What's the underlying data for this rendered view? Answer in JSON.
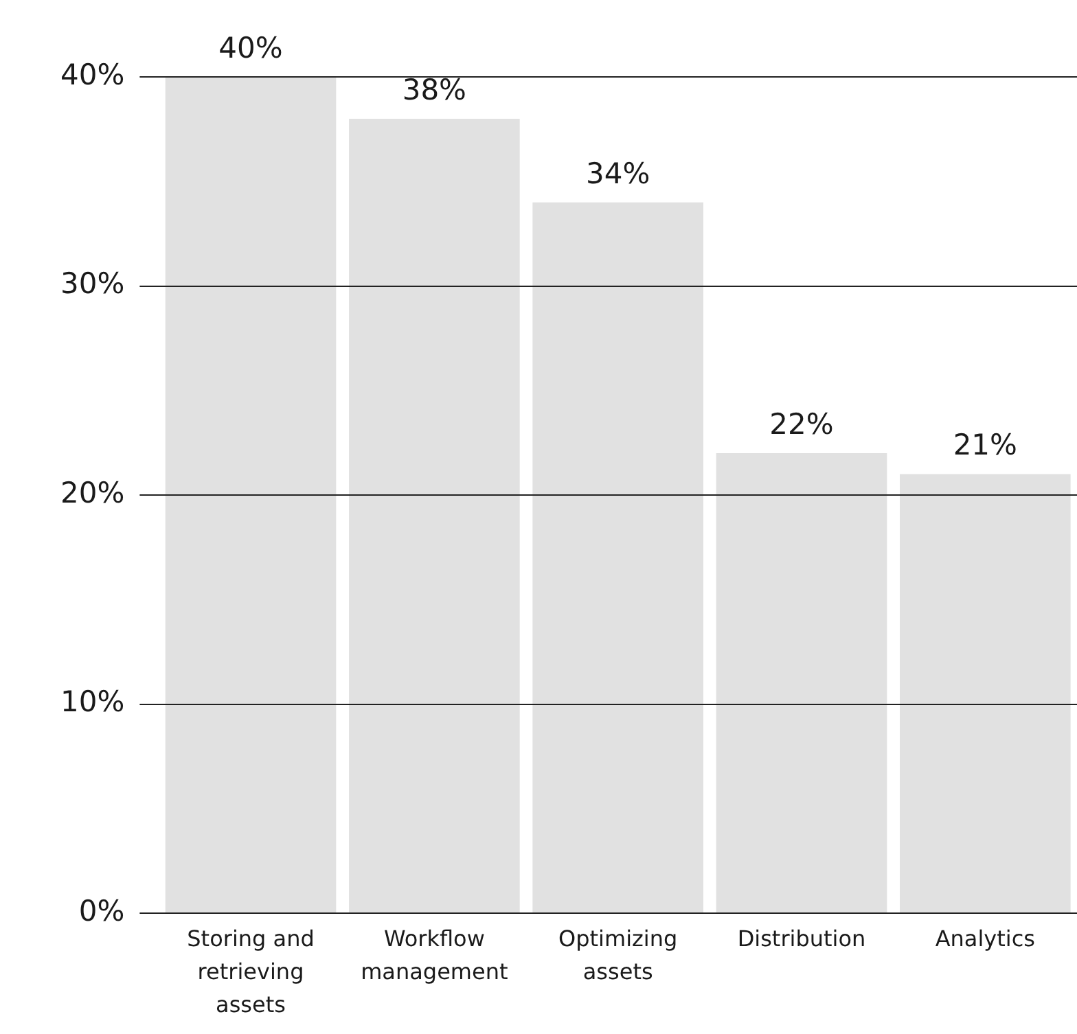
{
  "chart_data": {
    "type": "bar",
    "categories": [
      "Storing and retrieving assets",
      "Workflow management",
      "Optimizing assets",
      "Distribution",
      "Analytics"
    ],
    "values": [
      40,
      38,
      34,
      22,
      21
    ],
    "value_labels": [
      "40%",
      "38%",
      "34%",
      "22%",
      "21%"
    ],
    "color": "#e1e1e1",
    "ylim": [
      0,
      40
    ],
    "yticks": [
      {
        "value": 0,
        "label": "0%"
      },
      {
        "value": 10,
        "label": "10%"
      },
      {
        "value": 20,
        "label": "20%"
      },
      {
        "value": 30,
        "label": "30%"
      },
      {
        "value": 40,
        "label": "40%"
      }
    ],
    "grid": "y",
    "legend": false
  }
}
